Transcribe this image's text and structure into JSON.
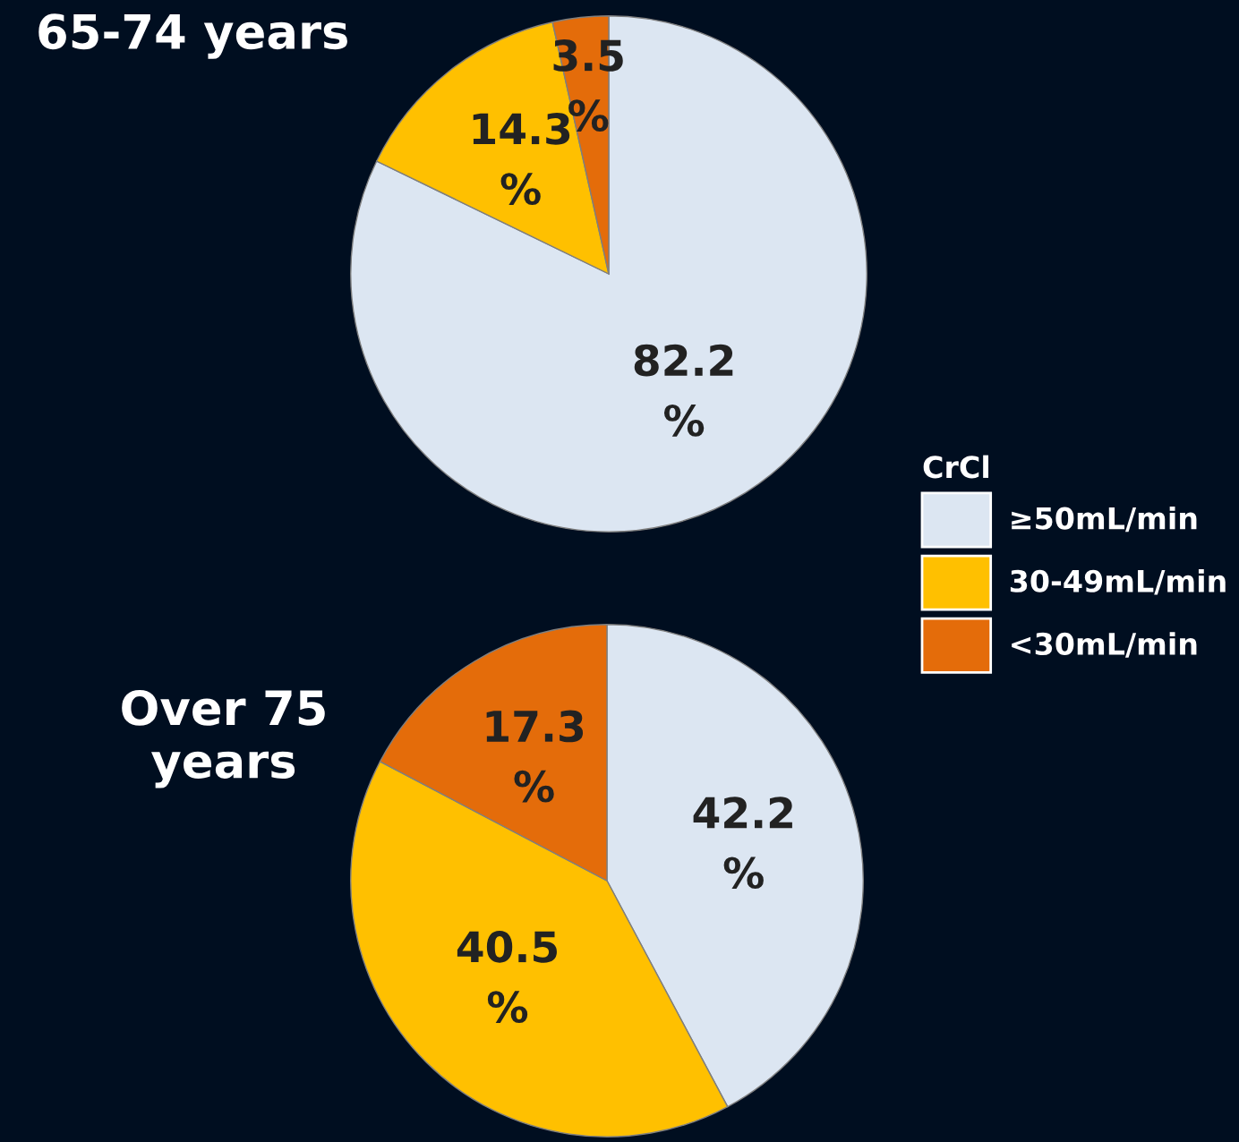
{
  "chart_data": [
    {
      "type": "pie",
      "title": "65-74 years",
      "categories": [
        "≥50mL/min",
        "30-49mL/min",
        "<30mL/min"
      ],
      "values": [
        82.2,
        14.3,
        3.5
      ],
      "colors": [
        "#dce6f2",
        "#ffc000",
        "#e46c0a"
      ],
      "value_labels": [
        "82.2\n%",
        "14.3\n%",
        "3.5\n%"
      ],
      "legend": "right",
      "legend_title": "CrCl"
    },
    {
      "type": "pie",
      "title": "Over 75\nyears",
      "categories": [
        null,
        null,
        null
      ],
      "values": [
        42.2,
        40.5,
        17.3
      ],
      "colors": [
        "#dce6f2",
        "#ffc000",
        "#e46c0a"
      ],
      "value_labels": [
        "42.2\n%",
        "40.5\n%",
        "17.3\n%"
      ]
    }
  ]
}
